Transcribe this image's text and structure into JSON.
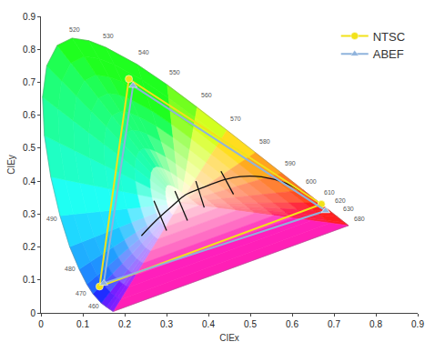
{
  "chart_data": {
    "type": "scatter",
    "x_label": "CIEx",
    "y_label": "CIEy",
    "xlim": [
      0,
      0.9
    ],
    "ylim": [
      0,
      0.9
    ],
    "xticks": [
      0,
      0.1,
      0.2,
      0.3,
      0.4,
      0.5,
      0.6,
      0.7,
      0.8,
      0.9
    ],
    "yticks": [
      0,
      0.1,
      0.2,
      0.3,
      0.4,
      0.5,
      0.6,
      0.7,
      0.8,
      0.9
    ],
    "grid": false,
    "legend": "top right",
    "series": [
      {
        "name": "NTSC",
        "color": "#f2e21a",
        "marker": "circle",
        "line_style": "solid",
        "x": [
          0.67,
          0.21,
          0.14,
          0.67
        ],
        "y": [
          0.33,
          0.71,
          0.08,
          0.33
        ]
      },
      {
        "name": "ABEF",
        "color": "#8fb3dc",
        "marker": "triangle-up",
        "line_style": "solid",
        "x": [
          0.68,
          0.22,
          0.15,
          0.68
        ],
        "y": [
          0.31,
          0.69,
          0.09,
          0.31
        ]
      }
    ],
    "spectral_locus": {
      "x": [
        0.1741,
        0.1714,
        0.1644,
        0.1566,
        0.144,
        0.1241,
        0.1096,
        0.0913,
        0.0687,
        0.0454,
        0.0235,
        0.0082,
        0.0039,
        0.0139,
        0.0389,
        0.0743,
        0.1142,
        0.1547,
        0.2296,
        0.3016,
        0.3731,
        0.4441,
        0.5125,
        0.5752,
        0.627,
        0.6658,
        0.6915,
        0.7079,
        0.726,
        0.7347
      ],
      "y": [
        0.005,
        0.0051,
        0.0109,
        0.0177,
        0.0297,
        0.0578,
        0.0868,
        0.1327,
        0.2007,
        0.295,
        0.4127,
        0.5384,
        0.6548,
        0.7502,
        0.812,
        0.8338,
        0.8262,
        0.8059,
        0.7543,
        0.6923,
        0.6245,
        0.5547,
        0.4866,
        0.4242,
        0.3725,
        0.334,
        0.3083,
        0.292,
        0.274,
        0.2653
      ]
    },
    "planckian_locus": {
      "x": [
        0.24,
        0.253,
        0.281,
        0.313,
        0.346,
        0.38,
        0.437,
        0.476,
        0.527,
        0.586,
        0.62
      ],
      "y": [
        0.234,
        0.252,
        0.288,
        0.324,
        0.359,
        0.377,
        0.404,
        0.414,
        0.413,
        0.393,
        0.37
      ]
    },
    "isotemperature_lines": [
      {
        "x": [
          0.27,
          0.3
        ],
        "y": [
          0.34,
          0.25
        ]
      },
      {
        "x": [
          0.32,
          0.35
        ],
        "y": [
          0.37,
          0.28
        ]
      },
      {
        "x": [
          0.37,
          0.39
        ],
        "y": [
          0.4,
          0.32
        ]
      },
      {
        "x": [
          0.43,
          0.46
        ],
        "y": [
          0.43,
          0.36
        ]
      }
    ],
    "annotations": [
      {
        "text": "520",
        "x": 0.08,
        "y": 0.86
      },
      {
        "text": "530",
        "x": 0.16,
        "y": 0.84
      },
      {
        "text": "540",
        "x": 0.245,
        "y": 0.79
      },
      {
        "text": "550",
        "x": 0.32,
        "y": 0.73
      },
      {
        "text": "560",
        "x": 0.395,
        "y": 0.66
      },
      {
        "text": "570",
        "x": 0.465,
        "y": 0.59
      },
      {
        "text": "580",
        "x": 0.535,
        "y": 0.52
      },
      {
        "text": "590",
        "x": 0.595,
        "y": 0.455
      },
      {
        "text": "600",
        "x": 0.645,
        "y": 0.4
      },
      {
        "text": "610",
        "x": 0.69,
        "y": 0.365
      },
      {
        "text": "620",
        "x": 0.715,
        "y": 0.34
      },
      {
        "text": "630",
        "x": 0.735,
        "y": 0.315
      },
      {
        "text": "680",
        "x": 0.76,
        "y": 0.285
      },
      {
        "text": "490",
        "x": 0.025,
        "y": 0.285
      },
      {
        "text": "480",
        "x": 0.07,
        "y": 0.135
      },
      {
        "text": "470",
        "x": 0.095,
        "y": 0.06
      },
      {
        "text": "460",
        "x": 0.125,
        "y": 0.02
      }
    ]
  }
}
